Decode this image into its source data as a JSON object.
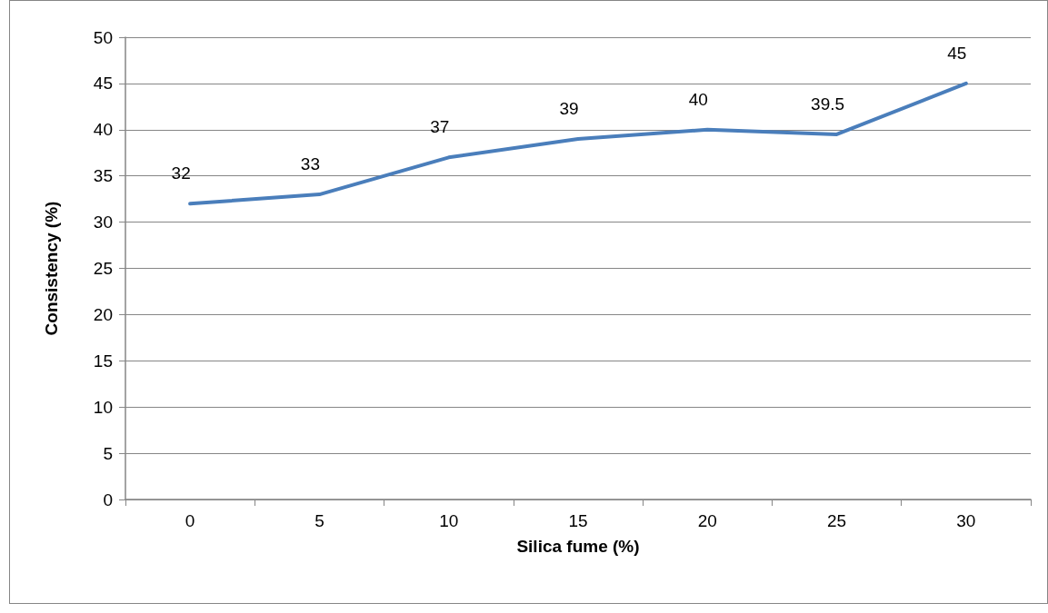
{
  "chart_data": {
    "type": "line",
    "xlabel": "Silica fume (%)",
    "ylabel": "Consistency (%)",
    "categories": [
      "0",
      "5",
      "10",
      "15",
      "20",
      "25",
      "30"
    ],
    "series": [
      {
        "color": "#4a7ebb",
        "values": [
          32,
          33,
          37,
          39,
          40,
          39.5,
          45
        ]
      }
    ],
    "ylim": [
      0,
      50
    ],
    "yticks": [
      0,
      5,
      10,
      15,
      20,
      25,
      30,
      35,
      40,
      45,
      50
    ],
    "grid": "y",
    "marker": "none",
    "line_style": "solid",
    "data_labels": true
  }
}
